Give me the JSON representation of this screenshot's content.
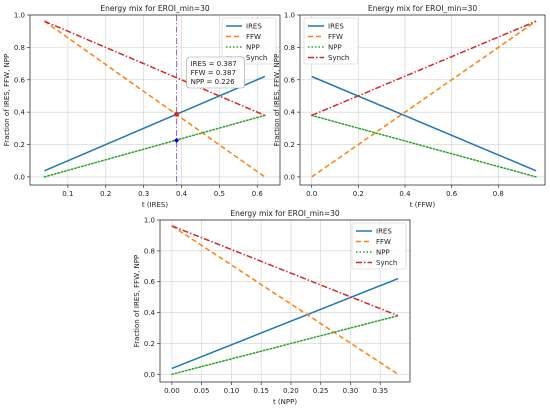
{
  "figure": {
    "background": "#ffffff"
  },
  "chart_data": [
    {
      "type": "line",
      "title": "Energy mix for EROI_min=30",
      "xlabel": "t (IRES)",
      "ylabel": "Fraction of IRES, FFW, NPP",
      "xlim": [
        0.0,
        0.66
      ],
      "ylim": [
        -0.05,
        1.0
      ],
      "xticks": [
        0.1,
        0.2,
        0.3,
        0.4,
        0.5,
        0.6
      ],
      "xtick_labels": [
        "0.1",
        "0.2",
        "0.3",
        "0.4",
        "0.5",
        "0.6"
      ],
      "yticks": [
        0.0,
        0.2,
        0.4,
        0.6,
        0.8,
        1.0
      ],
      "ytick_labels": [
        "0.0",
        "0.2",
        "0.4",
        "0.6",
        "0.8",
        "1.0"
      ],
      "grid": true,
      "legend": "top-right",
      "series": [
        {
          "name": "IRES",
          "color": "#1f77b4",
          "dash": "solid",
          "x": [
            0.038,
            0.62
          ],
          "y": [
            0.038,
            0.62
          ]
        },
        {
          "name": "FFW",
          "color": "#ff7f0e",
          "dash": "dashed",
          "x": [
            0.038,
            0.62
          ],
          "y": [
            0.962,
            0.0
          ]
        },
        {
          "name": "NPP",
          "color": "#2ca02c",
          "dash": "dotted",
          "x": [
            0.038,
            0.62
          ],
          "y": [
            0.0,
            0.38
          ]
        },
        {
          "name": "Synch",
          "color": "#d62728",
          "dash": "dashdot",
          "x": [
            0.038,
            0.62
          ],
          "y": [
            0.962,
            0.38
          ]
        }
      ],
      "vline": {
        "x": 0.387,
        "color": "#9467bd"
      },
      "markers": [
        {
          "x": 0.387,
          "y": 0.387,
          "color": "#d62728"
        },
        {
          "x": 0.387,
          "y": 0.226,
          "color": "#0000ff"
        }
      ],
      "annotation": {
        "lines": [
          "IRES = 0.387",
          "FFW = 0.387",
          "NPP = 0.226"
        ]
      }
    },
    {
      "type": "line",
      "title": "Energy mix for EROI_min=30",
      "xlabel": "t (FFW)",
      "ylabel": "Fraction of IRES, FFW, NPP",
      "xlim": [
        -0.05,
        1.0
      ],
      "ylim": [
        -0.05,
        1.0
      ],
      "xticks": [
        0.0,
        0.2,
        0.4,
        0.6,
        0.8
      ],
      "xtick_labels": [
        "0.0",
        "0.2",
        "0.4",
        "0.6",
        "0.8"
      ],
      "yticks": [
        0.0,
        0.2,
        0.4,
        0.6,
        0.8,
        1.0
      ],
      "ytick_labels": [
        "0.0",
        "0.2",
        "0.4",
        "0.6",
        "0.8",
        "1.0"
      ],
      "grid": true,
      "legend": "top-left",
      "series": [
        {
          "name": "IRES",
          "color": "#1f77b4",
          "dash": "solid",
          "x": [
            0.0,
            0.962
          ],
          "y": [
            0.62,
            0.038
          ]
        },
        {
          "name": "FFW",
          "color": "#ff7f0e",
          "dash": "dashed",
          "x": [
            0.0,
            0.962
          ],
          "y": [
            0.0,
            0.962
          ]
        },
        {
          "name": "NPP",
          "color": "#2ca02c",
          "dash": "dotted",
          "x": [
            0.0,
            0.962
          ],
          "y": [
            0.38,
            0.0
          ]
        },
        {
          "name": "Synch",
          "color": "#d62728",
          "dash": "dashdot",
          "x": [
            0.0,
            0.962
          ],
          "y": [
            0.38,
            0.962
          ]
        }
      ]
    },
    {
      "type": "line",
      "title": "Energy mix for EROI_min=30",
      "xlabel": "t (NPP)",
      "ylabel": "Fraction of IRES, FFW, NPP",
      "xlim": [
        -0.02,
        0.4
      ],
      "ylim": [
        -0.05,
        1.0
      ],
      "xticks": [
        0.0,
        0.05,
        0.1,
        0.15,
        0.2,
        0.25,
        0.3,
        0.35
      ],
      "xtick_labels": [
        "0.00",
        "0.05",
        "0.10",
        "0.15",
        "0.20",
        "0.25",
        "0.30",
        "0.35"
      ],
      "yticks": [
        0.0,
        0.2,
        0.4,
        0.6,
        0.8,
        1.0
      ],
      "ytick_labels": [
        "0.0",
        "0.2",
        "0.4",
        "0.6",
        "0.8",
        "1.0"
      ],
      "grid": true,
      "legend": "top-right",
      "series": [
        {
          "name": "IRES",
          "color": "#1f77b4",
          "dash": "solid",
          "x": [
            0.0,
            0.38
          ],
          "y": [
            0.038,
            0.62
          ]
        },
        {
          "name": "FFW",
          "color": "#ff7f0e",
          "dash": "dashed",
          "x": [
            0.0,
            0.38
          ],
          "y": [
            0.962,
            0.0
          ]
        },
        {
          "name": "NPP",
          "color": "#2ca02c",
          "dash": "dotted",
          "x": [
            0.0,
            0.38
          ],
          "y": [
            0.0,
            0.38
          ]
        },
        {
          "name": "Synch",
          "color": "#d62728",
          "dash": "dashdot",
          "x": [
            0.0,
            0.38
          ],
          "y": [
            0.962,
            0.38
          ]
        }
      ]
    }
  ]
}
